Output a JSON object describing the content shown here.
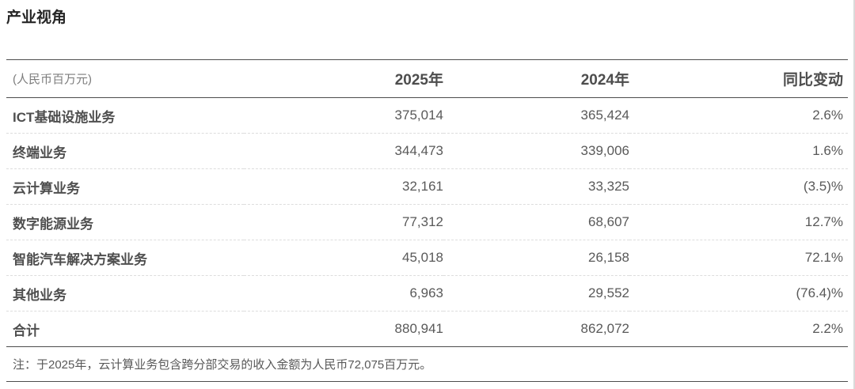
{
  "page": {
    "title": "产业视角"
  },
  "table": {
    "unit_label": "(人民币百万元)",
    "col_2025": "2025年",
    "col_2024": "2024年",
    "col_change": "同比变动",
    "rows": [
      {
        "label": "ICT基础设施业务",
        "y2025": "375,014",
        "y2024": "365,424",
        "change": "2.6%",
        "is_total": false
      },
      {
        "label": "终端业务",
        "y2025": "344,473",
        "y2024": "339,006",
        "change": "1.6%",
        "is_total": false
      },
      {
        "label": "云计算业务",
        "y2025": "32,161",
        "y2024": "33,325",
        "change": "(3.5)%",
        "is_total": false
      },
      {
        "label": "数字能源业务",
        "y2025": "77,312",
        "y2024": "68,607",
        "change": "12.7%",
        "is_total": false
      },
      {
        "label": "智能汽车解决方案业务",
        "y2025": "45,018",
        "y2024": "26,158",
        "change": "72.1%",
        "is_total": false
      },
      {
        "label": "其他业务",
        "y2025": "6,963",
        "y2024": "29,552",
        "change": "(76.4)%",
        "is_total": false
      },
      {
        "label": "合计",
        "y2025": "880,941",
        "y2024": "862,072",
        "change": "2.2%",
        "is_total": true
      }
    ],
    "note": "注：于2025年，云计算业务包含跨分部交易的收入金额为人民币72,075百万元。"
  },
  "chart_data": {
    "type": "table",
    "title": "产业视角",
    "unit": "人民币百万元",
    "categories": [
      "ICT基础设施业务",
      "终端业务",
      "云计算业务",
      "数字能源业务",
      "智能汽车解决方案业务",
      "其他业务",
      "合计"
    ],
    "series": [
      {
        "name": "2025年",
        "values": [
          375014,
          344473,
          32161,
          77312,
          45018,
          6963,
          880941
        ]
      },
      {
        "name": "2024年",
        "values": [
          365424,
          339006,
          33325,
          68607,
          26158,
          29552,
          862072
        ]
      },
      {
        "name": "同比变动",
        "values": [
          "2.6%",
          "1.6%",
          "(3.5)%",
          "12.7%",
          "72.1%",
          "(76.4)%",
          "2.2%"
        ]
      }
    ],
    "note": "注：于2025年，云计算业务包含跨分部交易的收入金额为人民币72,075百万元。"
  },
  "colors": {
    "heavy_rule": "#4d4d4d",
    "dashed_rule": "#dddddd",
    "title_text": "#262626",
    "label_text": "#4f4f4f",
    "value_text": "#595959",
    "unit_text": "#7d7d7d",
    "page_edge": "#dadada",
    "background": "#ffffff"
  }
}
